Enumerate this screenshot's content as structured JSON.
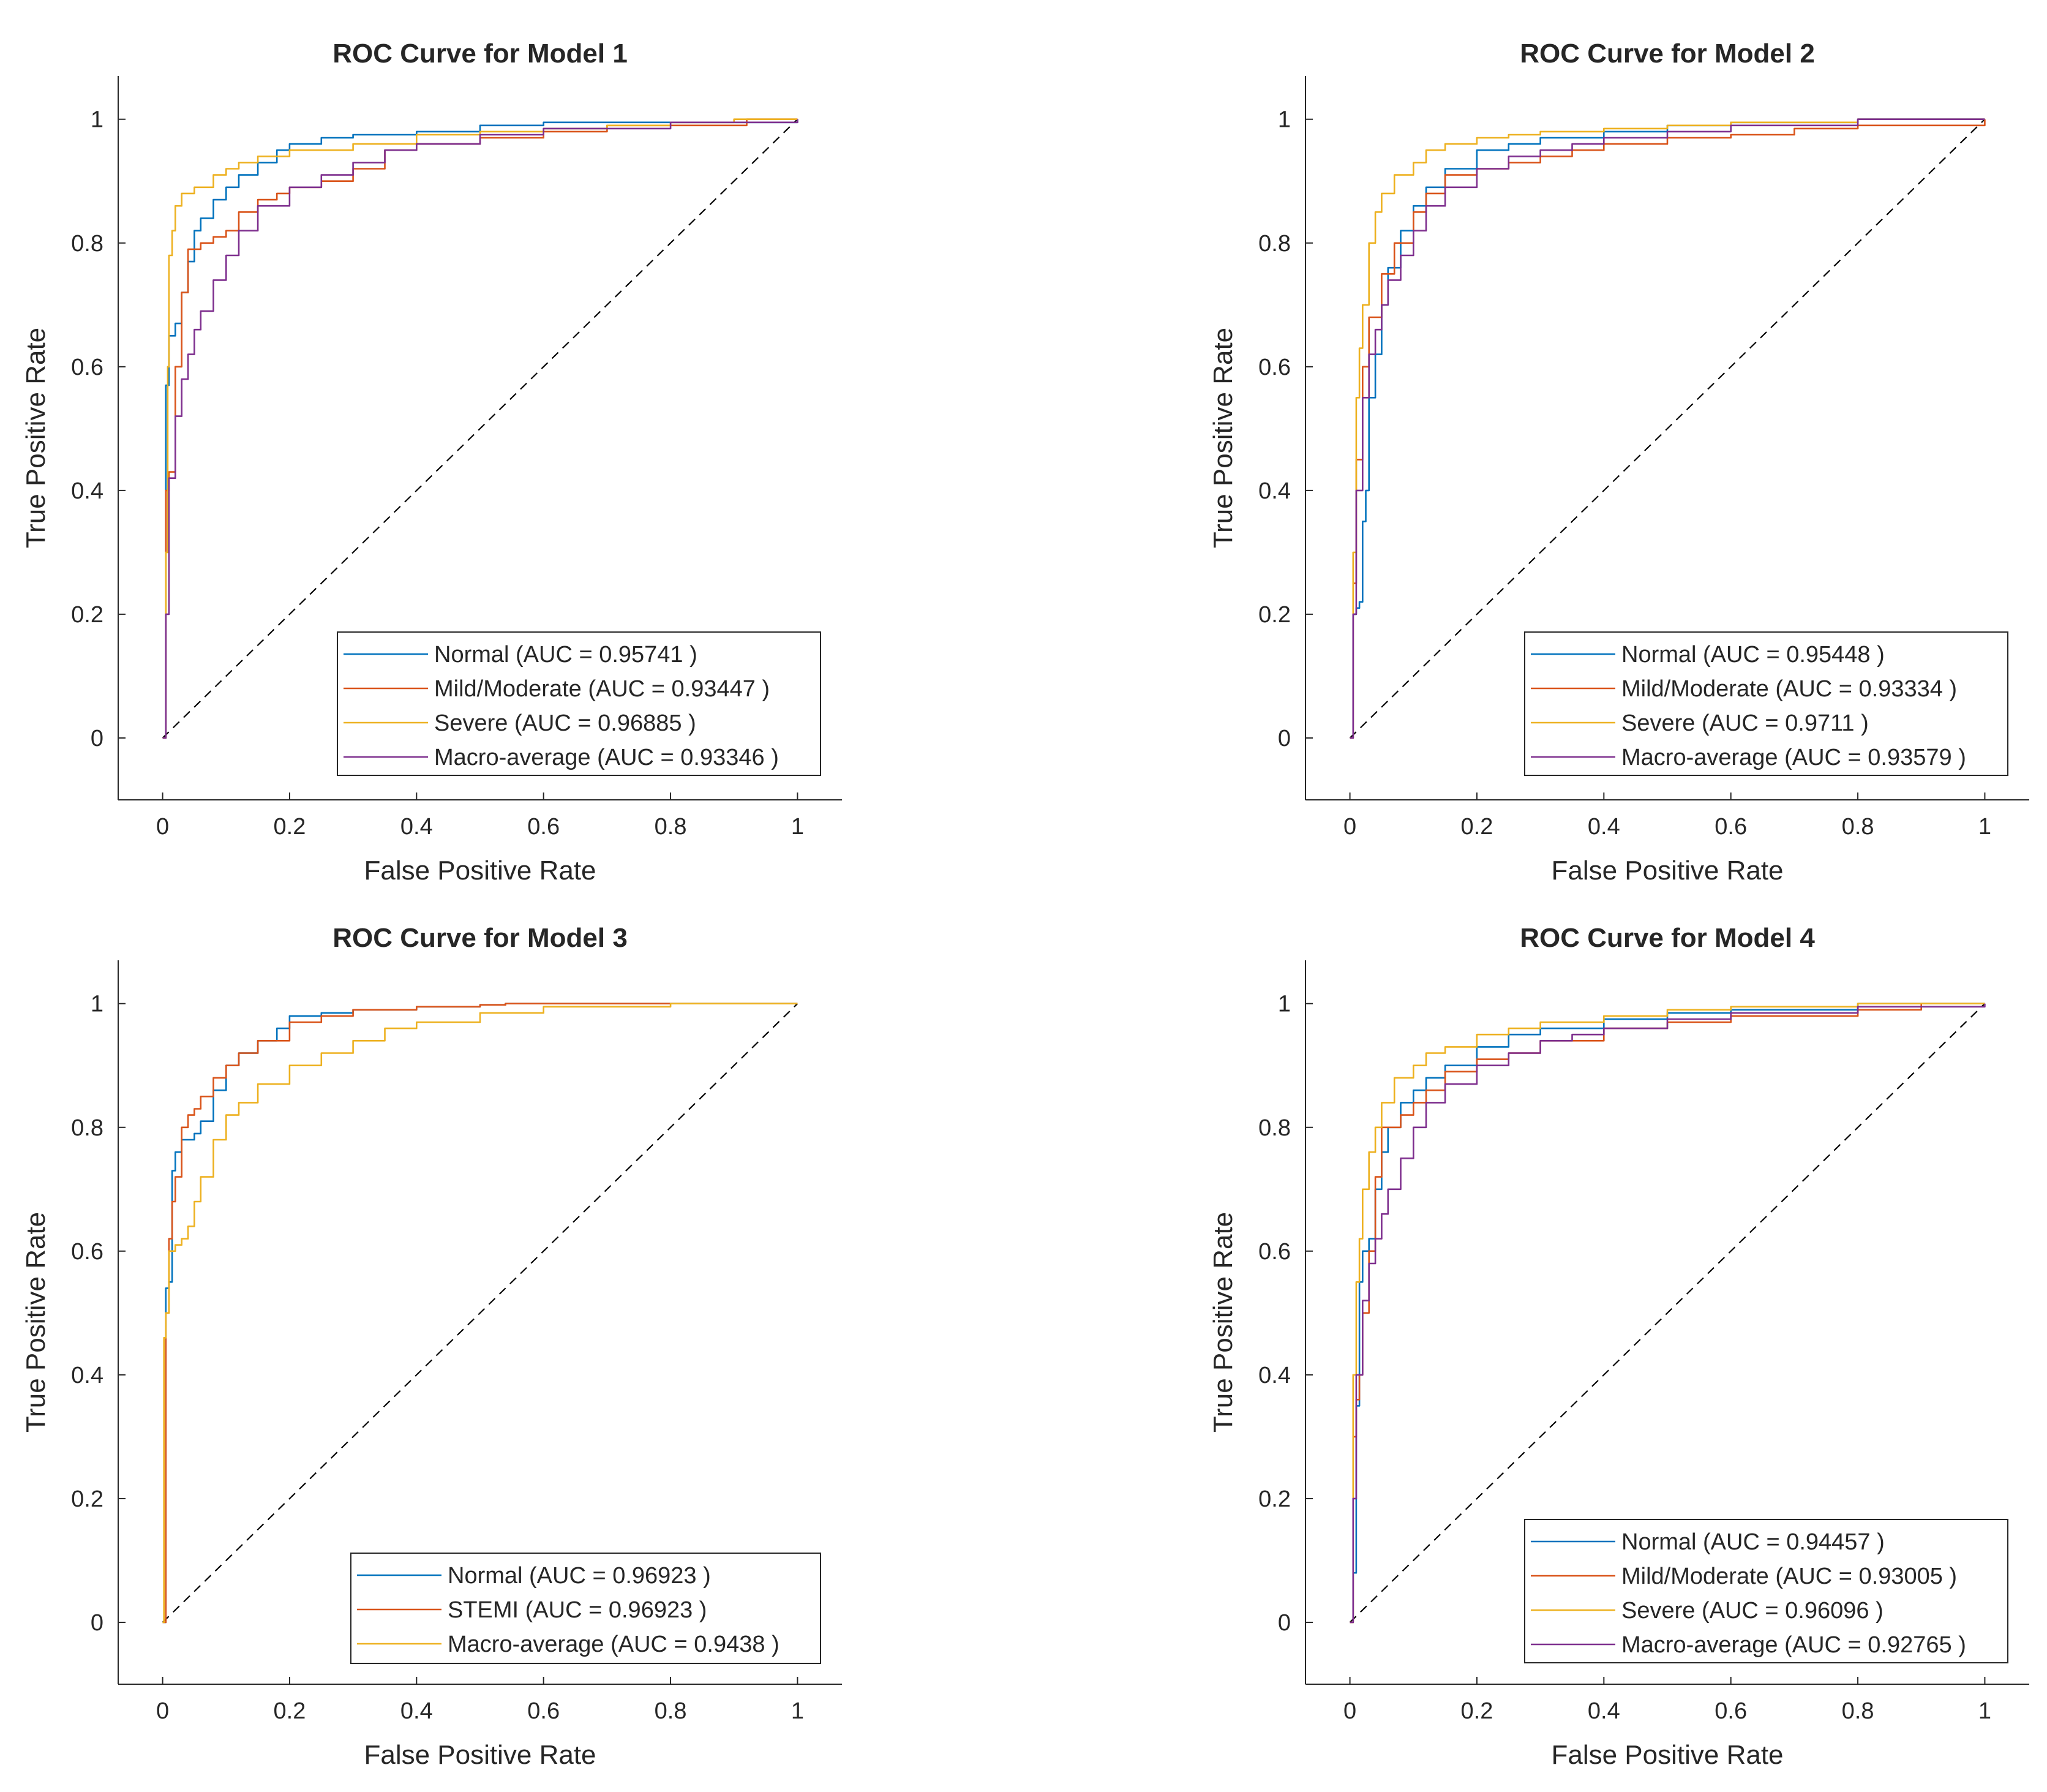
{
  "colors": {
    "blue": "#0072BD",
    "orange": "#D95319",
    "yellow": "#EDB120",
    "purple": "#7E2F8E",
    "axis": "#262626",
    "diagonal": "#000000"
  },
  "chart_data": [
    {
      "type": "line",
      "title": "ROC Curve for Model 1",
      "xlabel": "False Positive Rate",
      "ylabel": "True Positive Rate",
      "xlim": [
        -0.07,
        1.07
      ],
      "ylim": [
        -0.1,
        1.07
      ],
      "xticks": [
        "0",
        "0.2",
        "0.4",
        "0.6",
        "0.8",
        "1"
      ],
      "yticks": [
        "0",
        "0.2",
        "0.4",
        "0.6",
        "0.8",
        "1"
      ],
      "legend_position": "bottom-right",
      "series": [
        {
          "name": "Normal (AUC = 0.95741 )",
          "color": "blue",
          "x": [
            0,
            0.005,
            0.005,
            0.01,
            0.01,
            0.02,
            0.03,
            0.04,
            0.05,
            0.06,
            0.08,
            0.1,
            0.12,
            0.15,
            0.18,
            0.2,
            0.25,
            0.3,
            0.4,
            0.5,
            0.6,
            1.0
          ],
          "y": [
            0,
            0.1,
            0.57,
            0.58,
            0.65,
            0.67,
            0.72,
            0.77,
            0.82,
            0.84,
            0.87,
            0.89,
            0.91,
            0.93,
            0.95,
            0.96,
            0.97,
            0.975,
            0.98,
            0.99,
            0.995,
            1.0
          ]
        },
        {
          "name": "Mild/Moderate (AUC = 0.93447 )",
          "color": "orange",
          "x": [
            0,
            0.005,
            0.005,
            0.01,
            0.02,
            0.03,
            0.04,
            0.06,
            0.08,
            0.1,
            0.12,
            0.15,
            0.18,
            0.2,
            0.25,
            0.3,
            0.35,
            0.4,
            0.5,
            0.6,
            0.7,
            0.9,
            0.92,
            1.0
          ],
          "y": [
            0,
            0.1,
            0.4,
            0.43,
            0.6,
            0.72,
            0.79,
            0.8,
            0.81,
            0.82,
            0.85,
            0.87,
            0.88,
            0.89,
            0.9,
            0.92,
            0.95,
            0.96,
            0.97,
            0.98,
            0.99,
            0.99,
            1.0,
            1.0
          ]
        },
        {
          "name": "Severe (AUC = 0.96885 )",
          "color": "yellow",
          "x": [
            0,
            0.005,
            0.008,
            0.01,
            0.015,
            0.02,
            0.03,
            0.05,
            0.08,
            0.1,
            0.12,
            0.15,
            0.2,
            0.3,
            0.4,
            0.5,
            0.6,
            0.7,
            0.8,
            0.9,
            1.0
          ],
          "y": [
            0,
            0.3,
            0.6,
            0.78,
            0.82,
            0.86,
            0.88,
            0.89,
            0.91,
            0.92,
            0.93,
            0.94,
            0.95,
            0.96,
            0.975,
            0.98,
            0.985,
            0.99,
            0.995,
            1.0,
            1.0
          ]
        },
        {
          "name": "Macro-average (AUC = 0.93346 )",
          "color": "purple",
          "x": [
            0,
            0.005,
            0.01,
            0.02,
            0.03,
            0.04,
            0.05,
            0.06,
            0.08,
            0.1,
            0.12,
            0.15,
            0.2,
            0.25,
            0.3,
            0.35,
            0.4,
            0.5,
            0.6,
            0.8,
            1.0
          ],
          "y": [
            0,
            0.2,
            0.42,
            0.52,
            0.58,
            0.62,
            0.66,
            0.69,
            0.74,
            0.78,
            0.82,
            0.86,
            0.89,
            0.91,
            0.93,
            0.95,
            0.96,
            0.975,
            0.985,
            0.995,
            1.0
          ]
        }
      ]
    },
    {
      "type": "line",
      "title": "ROC Curve for Model 2",
      "xlabel": "False Positive Rate",
      "ylabel": "True Positive Rate",
      "xlim": [
        -0.07,
        1.07
      ],
      "ylim": [
        -0.1,
        1.07
      ],
      "xticks": [
        "0",
        "0.2",
        "0.4",
        "0.6",
        "0.8",
        "1"
      ],
      "yticks": [
        "0",
        "0.2",
        "0.4",
        "0.6",
        "0.8",
        "1"
      ],
      "legend_position": "bottom-right",
      "series": [
        {
          "name": "Normal (AUC = 0.95448 )",
          "color": "blue",
          "x": [
            0,
            0.005,
            0.01,
            0.015,
            0.02,
            0.025,
            0.03,
            0.04,
            0.05,
            0.06,
            0.08,
            0.1,
            0.12,
            0.15,
            0.2,
            0.25,
            0.3,
            0.4,
            0.5,
            0.6,
            0.8,
            1.0
          ],
          "y": [
            0,
            0.2,
            0.21,
            0.22,
            0.35,
            0.4,
            0.55,
            0.62,
            0.7,
            0.76,
            0.82,
            0.86,
            0.89,
            0.92,
            0.95,
            0.96,
            0.97,
            0.98,
            0.99,
            0.995,
            1.0,
            1.0
          ]
        },
        {
          "name": "Mild/Moderate (AUC = 0.93334 )",
          "color": "orange",
          "x": [
            0,
            0.005,
            0.01,
            0.02,
            0.03,
            0.05,
            0.07,
            0.1,
            0.12,
            0.15,
            0.2,
            0.25,
            0.3,
            0.35,
            0.4,
            0.5,
            0.6,
            0.7,
            0.8,
            1.0
          ],
          "y": [
            0,
            0.25,
            0.45,
            0.6,
            0.68,
            0.75,
            0.8,
            0.85,
            0.88,
            0.91,
            0.92,
            0.93,
            0.94,
            0.95,
            0.96,
            0.97,
            0.975,
            0.985,
            0.99,
            1.0
          ]
        },
        {
          "name": "Severe (AUC = 0.9711 )",
          "color": "yellow",
          "x": [
            0,
            0.005,
            0.01,
            0.015,
            0.02,
            0.03,
            0.04,
            0.05,
            0.07,
            0.1,
            0.12,
            0.15,
            0.2,
            0.25,
            0.3,
            0.4,
            0.5,
            0.6,
            0.8,
            1.0
          ],
          "y": [
            0,
            0.3,
            0.55,
            0.63,
            0.7,
            0.8,
            0.85,
            0.88,
            0.91,
            0.93,
            0.95,
            0.96,
            0.97,
            0.975,
            0.98,
            0.985,
            0.99,
            0.995,
            1.0,
            1.0
          ]
        },
        {
          "name": "Macro-average (AUC = 0.93579 )",
          "color": "purple",
          "x": [
            0,
            0.005,
            0.01,
            0.02,
            0.03,
            0.04,
            0.05,
            0.06,
            0.08,
            0.1,
            0.12,
            0.15,
            0.2,
            0.25,
            0.3,
            0.35,
            0.4,
            0.5,
            0.6,
            0.8,
            1.0
          ],
          "y": [
            0,
            0.2,
            0.4,
            0.55,
            0.62,
            0.66,
            0.7,
            0.74,
            0.78,
            0.82,
            0.86,
            0.89,
            0.92,
            0.94,
            0.95,
            0.96,
            0.97,
            0.98,
            0.99,
            1.0,
            1.0
          ]
        }
      ]
    },
    {
      "type": "line",
      "title": "ROC Curve for Model 3",
      "xlabel": "False Positive Rate",
      "ylabel": "True Positive Rate",
      "xlim": [
        -0.07,
        1.07
      ],
      "ylim": [
        -0.1,
        1.07
      ],
      "xticks": [
        "0",
        "0.2",
        "0.4",
        "0.6",
        "0.8",
        "1"
      ],
      "yticks": [
        "0",
        "0.2",
        "0.4",
        "0.6",
        "0.8",
        "1"
      ],
      "legend_position": "bottom-right",
      "series": [
        {
          "name": "Normal (AUC = 0.96923 )",
          "color": "blue",
          "x": [
            0,
            0.005,
            0.005,
            0.01,
            0.015,
            0.02,
            0.03,
            0.05,
            0.06,
            0.08,
            0.1,
            0.12,
            0.15,
            0.18,
            0.2,
            0.25,
            0.3,
            0.4,
            0.5,
            0.54,
            1.0
          ],
          "y": [
            0,
            0.5,
            0.54,
            0.55,
            0.73,
            0.76,
            0.78,
            0.79,
            0.81,
            0.86,
            0.9,
            0.92,
            0.94,
            0.96,
            0.98,
            0.985,
            0.99,
            0.995,
            0.998,
            1.0,
            1.0
          ]
        },
        {
          "name": "STEMI (AUC = 0.96923 )",
          "color": "orange",
          "x": [
            0,
            0.005,
            0.005,
            0.01,
            0.015,
            0.02,
            0.03,
            0.04,
            0.05,
            0.06,
            0.08,
            0.1,
            0.12,
            0.15,
            0.2,
            0.25,
            0.3,
            0.4,
            0.5,
            0.54,
            1.0
          ],
          "y": [
            0,
            0.46,
            0.5,
            0.62,
            0.68,
            0.72,
            0.8,
            0.82,
            0.83,
            0.85,
            0.88,
            0.9,
            0.92,
            0.94,
            0.97,
            0.98,
            0.99,
            0.995,
            0.998,
            1.0,
            1.0
          ]
        },
        {
          "name": "Macro-average (AUC = 0.9438 )",
          "color": "yellow",
          "x": [
            0,
            0.002,
            0.005,
            0.01,
            0.02,
            0.03,
            0.04,
            0.05,
            0.06,
            0.08,
            0.1,
            0.12,
            0.15,
            0.2,
            0.25,
            0.3,
            0.35,
            0.4,
            0.5,
            0.6,
            0.8,
            1.0
          ],
          "y": [
            0,
            0.46,
            0.5,
            0.6,
            0.61,
            0.62,
            0.64,
            0.68,
            0.72,
            0.78,
            0.82,
            0.84,
            0.87,
            0.9,
            0.92,
            0.94,
            0.96,
            0.97,
            0.985,
            0.995,
            1.0,
            1.0
          ]
        }
      ]
    },
    {
      "type": "line",
      "title": "ROC Curve for Model 4",
      "xlabel": "False Positive Rate",
      "ylabel": "True Positive Rate",
      "xlim": [
        -0.07,
        1.07
      ],
      "ylim": [
        -0.1,
        1.07
      ],
      "xticks": [
        "0",
        "0.2",
        "0.4",
        "0.6",
        "0.8",
        "1"
      ],
      "yticks": [
        "0",
        "0.2",
        "0.4",
        "0.6",
        "0.8",
        "1"
      ],
      "legend_position": "bottom-right",
      "series": [
        {
          "name": "Normal (AUC = 0.94457 )",
          "color": "blue",
          "x": [
            0,
            0.005,
            0.01,
            0.015,
            0.02,
            0.03,
            0.04,
            0.05,
            0.06,
            0.08,
            0.1,
            0.12,
            0.15,
            0.2,
            0.25,
            0.3,
            0.4,
            0.5,
            0.6,
            0.8,
            1.0
          ],
          "y": [
            0,
            0.08,
            0.35,
            0.55,
            0.6,
            0.62,
            0.7,
            0.76,
            0.8,
            0.84,
            0.86,
            0.88,
            0.9,
            0.93,
            0.95,
            0.96,
            0.975,
            0.985,
            0.99,
            1.0,
            1.0
          ]
        },
        {
          "name": "Mild/Moderate (AUC = 0.93005 )",
          "color": "orange",
          "x": [
            0,
            0.005,
            0.01,
            0.015,
            0.02,
            0.03,
            0.04,
            0.05,
            0.06,
            0.08,
            0.1,
            0.12,
            0.15,
            0.2,
            0.25,
            0.3,
            0.4,
            0.5,
            0.6,
            0.8,
            0.9,
            1.0
          ],
          "y": [
            0,
            0.3,
            0.36,
            0.4,
            0.5,
            0.6,
            0.72,
            0.8,
            0.8,
            0.82,
            0.84,
            0.86,
            0.89,
            0.91,
            0.92,
            0.94,
            0.96,
            0.97,
            0.98,
            0.99,
            1.0,
            1.0
          ]
        },
        {
          "name": "Severe (AUC = 0.96096 )",
          "color": "yellow",
          "x": [
            0,
            0.005,
            0.01,
            0.015,
            0.02,
            0.03,
            0.04,
            0.05,
            0.07,
            0.1,
            0.12,
            0.15,
            0.2,
            0.25,
            0.3,
            0.4,
            0.5,
            0.6,
            0.8,
            1.0
          ],
          "y": [
            0,
            0.4,
            0.55,
            0.62,
            0.7,
            0.76,
            0.8,
            0.84,
            0.88,
            0.9,
            0.92,
            0.93,
            0.95,
            0.96,
            0.97,
            0.98,
            0.99,
            0.995,
            1.0,
            1.0
          ]
        },
        {
          "name": "Macro-average (AUC = 0.92765 )",
          "color": "purple",
          "x": [
            0,
            0.005,
            0.01,
            0.02,
            0.03,
            0.04,
            0.05,
            0.06,
            0.08,
            0.1,
            0.12,
            0.15,
            0.2,
            0.25,
            0.3,
            0.35,
            0.4,
            0.5,
            0.6,
            0.8,
            1.0
          ],
          "y": [
            0,
            0.2,
            0.4,
            0.52,
            0.58,
            0.62,
            0.66,
            0.7,
            0.75,
            0.8,
            0.84,
            0.87,
            0.9,
            0.92,
            0.94,
            0.95,
            0.96,
            0.975,
            0.985,
            0.995,
            1.0
          ]
        }
      ]
    }
  ]
}
